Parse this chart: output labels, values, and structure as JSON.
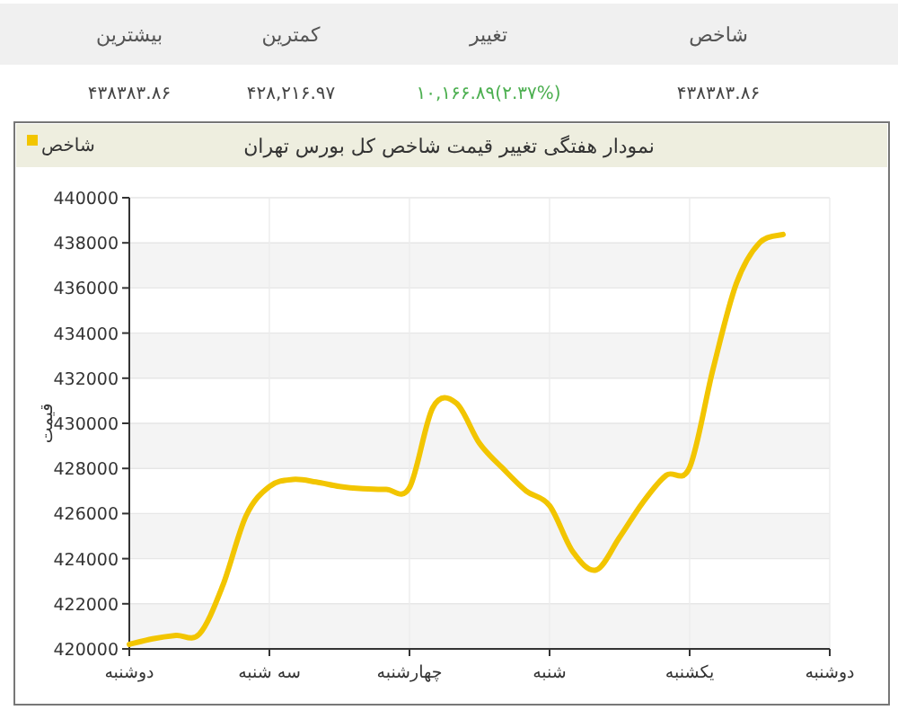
{
  "chart_data": [
    {
      "type": "other",
      "annotations": [
        "شاخص",
        "تغییر",
        "کمترین",
        "بیشترین",
        "۴۳۸۳۸۳.۸۶",
        "۱۰,۱۶۶.۸۹(۲.۳۷%)",
        "۴۲۸,۲۱۶.۹۷",
        "۴۳۸۳۸۳.۸۶"
      ],
      "colors": [
        "#555555",
        "#555555",
        "#555555",
        "#555555",
        "#444444",
        "#4caf50",
        "#444444",
        "#444444"
      ]
    },
    {
      "type": "line",
      "title": "نمودار هفتگی تغییر قیمت شاخص کل بورس تهران",
      "ylabel": "قیمت",
      "legend": "top left",
      "grid": true,
      "categories": [
        "دوشنبه",
        null,
        null,
        null,
        null,
        null,
        "سه شنبه",
        null,
        null,
        null,
        null,
        null,
        "چهارشنبه",
        null,
        null,
        null,
        null,
        null,
        "شنبه",
        null,
        null,
        null,
        null,
        null,
        "یکشنبه",
        null,
        null,
        null,
        null,
        null,
        "دوشنبه"
      ],
      "ylim": [
        420000,
        440000
      ],
      "yticks": [
        420000,
        422000,
        424000,
        426000,
        428000,
        430000,
        432000,
        434000,
        436000,
        438000,
        440000
      ],
      "series": [
        {
          "name": "شاخص",
          "color": "#f2c500",
          "values": [
            420200,
            420450,
            420600,
            420660,
            422800,
            425900,
            427200,
            427510,
            427400,
            427200,
            427100,
            427070,
            427150,
            430700,
            430900,
            429110,
            428000,
            427000,
            426350,
            424300,
            423500,
            424950,
            426500,
            427700,
            428050,
            432400,
            436200,
            438010,
            438370,
            null,
            null
          ]
        }
      ]
    }
  ]
}
